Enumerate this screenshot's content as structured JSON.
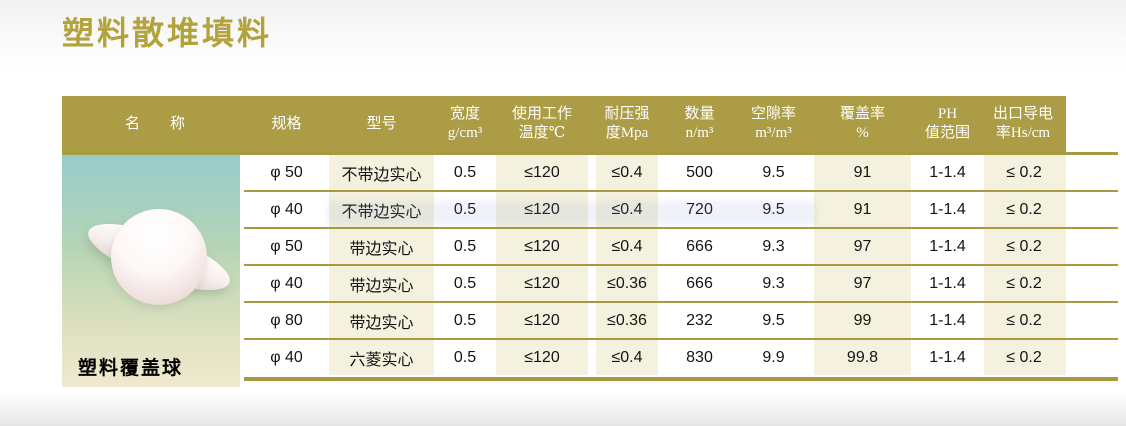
{
  "page": {
    "title": "塑料散堆填料"
  },
  "product": {
    "image_label": "塑料覆盖球"
  },
  "table": {
    "headers": [
      {
        "l1": "名　　称",
        "l2": ""
      },
      {
        "l1": "规格",
        "l2": ""
      },
      {
        "l1": "型号",
        "l2": ""
      },
      {
        "l1": "宽度",
        "l2": "g/cm³"
      },
      {
        "l1": "使用工作",
        "l2": "温度℃"
      },
      {
        "l1": "耐压强",
        "l2": "度Mpa"
      },
      {
        "l1": "数量",
        "l2": "n/m³"
      },
      {
        "l1": "空隙率",
        "l2": "m³/m³"
      },
      {
        "l1": "覆盖率",
        "l2": "%"
      },
      {
        "l1": "PH",
        "l2": "值范围"
      },
      {
        "l1": "出口导电",
        "l2": "率Hs/cm"
      }
    ],
    "rows": [
      [
        "φ 50",
        "不带边实心",
        "0.5",
        "≤120",
        "≤0.4",
        "500",
        "9.5",
        "91",
        "1-1.4",
        "≤ 0.2"
      ],
      [
        "φ 40",
        "不带边实心",
        "0.5",
        "≤120",
        "≤0.4",
        "720",
        "9.5",
        "91",
        "1-1.4",
        "≤ 0.2"
      ],
      [
        "φ 50",
        "带边实心",
        "0.5",
        "≤120",
        "≤0.4",
        "666",
        "9.3",
        "97",
        "1-1.4",
        "≤ 0.2"
      ],
      [
        "φ 40",
        "带边实心",
        "0.5",
        "≤120",
        "≤0.36",
        "666",
        "9.3",
        "97",
        "1-1.4",
        "≤ 0.2"
      ],
      [
        "φ 80",
        "带边实心",
        "0.5",
        "≤120",
        "≤0.36",
        "232",
        "9.5",
        "99",
        "1-1.4",
        "≤ 0.2"
      ],
      [
        "φ 40",
        "六菱实心",
        "0.5",
        "≤120",
        "≤0.4",
        "830",
        "9.9",
        "99.8",
        "1-1.4",
        "≤ 0.2"
      ]
    ]
  },
  "colors": {
    "title": "#b3a33c",
    "header_bg": "#ab9c45",
    "grid_line": "#a89a41",
    "cream_cell": "#f4f1df"
  }
}
